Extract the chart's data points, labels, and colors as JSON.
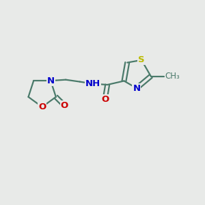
{
  "bg_color": "#e8eae8",
  "bond_color": "#4a7a6a",
  "bond_width": 1.6,
  "atom_colors": {
    "N": "#0000cc",
    "O": "#cc0000",
    "S": "#bbbb00",
    "C": "#4a7a6a",
    "H": "#888888"
  },
  "font_size": 9.5,
  "figsize": [
    3.0,
    3.0
  ],
  "dpi": 100,
  "xlim": [
    0,
    10
  ],
  "ylim": [
    0,
    10
  ]
}
